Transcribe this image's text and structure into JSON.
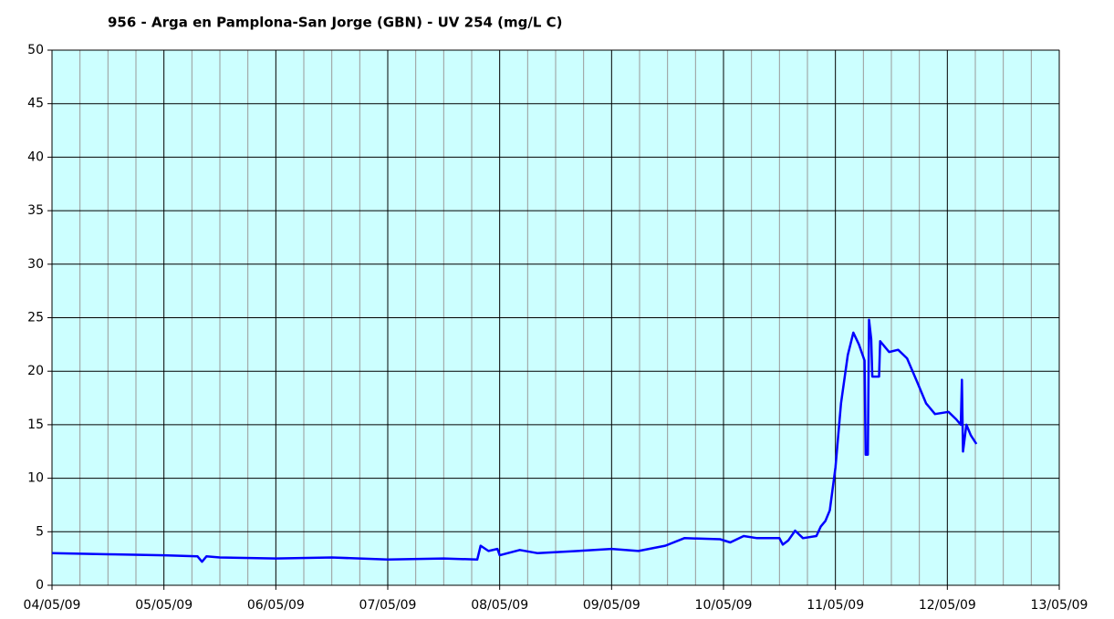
{
  "chart_data": {
    "type": "line",
    "title": "956 - Arga en Pamplona-San Jorge (GBN) - UV 254 (mg/L C)",
    "x": [
      0,
      0.5,
      1.0,
      1.3,
      1.34,
      1.38,
      1.5,
      2.0,
      2.5,
      3.0,
      3.5,
      3.8,
      3.83,
      3.9,
      3.98,
      4.0,
      4.18,
      4.34,
      4.7,
      5.0,
      5.24,
      5.48,
      5.65,
      5.97,
      6.06,
      6.18,
      6.3,
      6.5,
      6.53,
      6.58,
      6.64,
      6.71,
      6.83,
      6.87,
      6.91,
      6.95,
      7.0,
      7.05,
      7.11,
      7.16,
      7.21,
      7.26,
      7.27,
      7.29,
      7.3,
      7.32,
      7.33,
      7.39,
      7.4,
      7.48,
      7.56,
      7.64,
      7.73,
      7.81,
      7.89,
      8.01,
      8.08,
      8.12,
      8.13,
      8.14,
      8.17,
      8.21,
      8.26
    ],
    "series": [
      {
        "name": "UV 254",
        "color": "#0000ff",
        "values": [
          3.0,
          2.9,
          2.8,
          2.7,
          2.2,
          2.7,
          2.6,
          2.5,
          2.6,
          2.4,
          2.5,
          2.4,
          3.7,
          3.2,
          3.4,
          2.8,
          3.3,
          3.0,
          3.2,
          3.4,
          3.2,
          3.7,
          4.4,
          4.3,
          4.0,
          4.6,
          4.4,
          4.4,
          3.8,
          4.2,
          5.1,
          4.4,
          4.6,
          5.5,
          6.0,
          7.0,
          11.0,
          17.0,
          21.5,
          23.6,
          22.5,
          21.0,
          12.2,
          12.2,
          24.8,
          23.0,
          19.5,
          19.5,
          22.8,
          21.8,
          22.0,
          21.2,
          19.0,
          17.0,
          16.0,
          16.2,
          15.5,
          15.0,
          19.2,
          12.5,
          15.0,
          14.0,
          13.2
        ]
      }
    ],
    "xlim": [
      0,
      9
    ],
    "xticks": [
      {
        "value": 0,
        "label": "04/05/09"
      },
      {
        "value": 1,
        "label": "05/05/09"
      },
      {
        "value": 2,
        "label": "06/05/09"
      },
      {
        "value": 3,
        "label": "07/05/09"
      },
      {
        "value": 4,
        "label": "08/05/09"
      },
      {
        "value": 5,
        "label": "09/05/09"
      },
      {
        "value": 6,
        "label": "10/05/09"
      },
      {
        "value": 7,
        "label": "11/05/09"
      },
      {
        "value": 8,
        "label": "12/05/09"
      },
      {
        "value": 9,
        "label": "13/05/09"
      }
    ],
    "ylim": [
      0,
      50
    ],
    "yticks": [
      0,
      5,
      10,
      15,
      20,
      25,
      30,
      35,
      40,
      45,
      50
    ],
    "grid": true,
    "plot_background": "#ccffff"
  }
}
